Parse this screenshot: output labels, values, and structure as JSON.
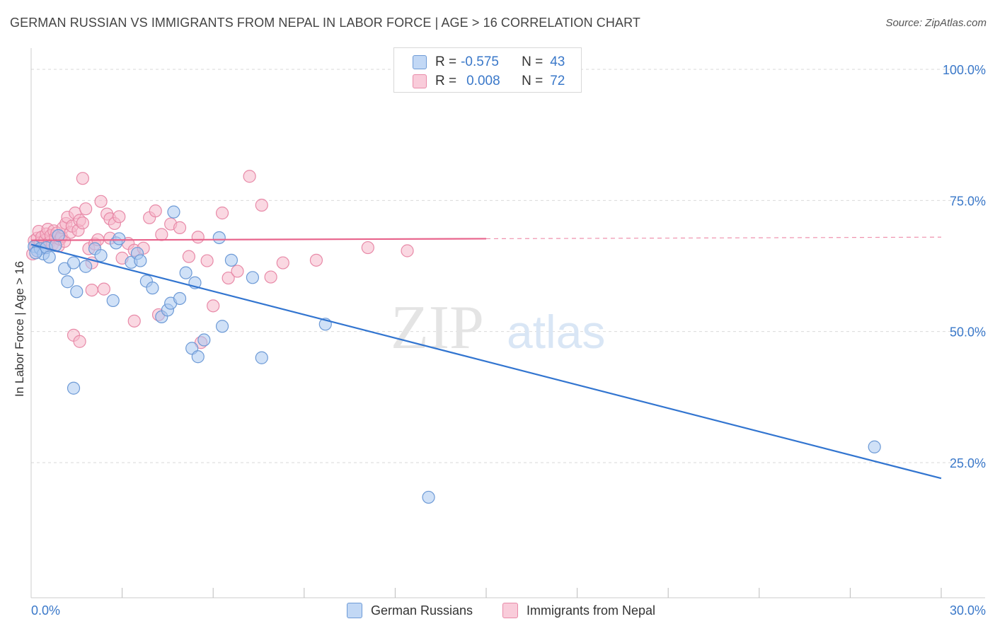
{
  "header": {
    "title": "GERMAN RUSSIAN VS IMMIGRANTS FROM NEPAL IN LABOR FORCE | AGE > 16 CORRELATION CHART",
    "source": "Source: ZipAtlas.com"
  },
  "legend": {
    "series1": {
      "r_label": "R =",
      "r_value": "-0.575",
      "n_label": "N =",
      "n_value": "43"
    },
    "series2": {
      "r_label": "R =",
      "r_value": "0.008",
      "n_label": "N =",
      "n_value": "72"
    }
  },
  "colors": {
    "blue_fill": "#a9c8f0",
    "blue_stroke": "#6d9ad6",
    "blue_line": "#3275d0",
    "pink_fill": "#f6b8cb",
    "pink_stroke": "#e88aa8",
    "pink_line": "#e8648c",
    "grid": "#d9d9d9",
    "axis_text": "#3a78c9"
  },
  "watermark": {
    "zip": "ZIP",
    "atlas": "atlas"
  },
  "chart_data": {
    "type": "scatter",
    "xlabel": "",
    "ylabel": "In Labor Force | Age > 16",
    "xlim": [
      0,
      30
    ],
    "ylim": [
      0,
      105
    ],
    "x_tick_labels": [
      "0.0%",
      "30.0%"
    ],
    "y_ticks": [
      25,
      50,
      75,
      100
    ],
    "y_tick_labels": [
      "25.0%",
      "50.0%",
      "75.0%",
      "100.0%"
    ],
    "series": [
      {
        "name": "German Russians",
        "points": [
          [
            0.1,
            66.2
          ],
          [
            0.2,
            65.4
          ],
          [
            0.3,
            65.8
          ],
          [
            0.4,
            64.8
          ],
          [
            0.5,
            66.0
          ],
          [
            0.6,
            64.2
          ],
          [
            0.8,
            66.4
          ],
          [
            0.9,
            68.3
          ],
          [
            1.1,
            62.0
          ],
          [
            1.2,
            59.5
          ],
          [
            1.4,
            63.1
          ],
          [
            1.5,
            57.6
          ],
          [
            1.8,
            62.4
          ],
          [
            2.1,
            65.8
          ],
          [
            2.3,
            64.5
          ],
          [
            2.7,
            55.9
          ],
          [
            2.8,
            66.9
          ],
          [
            2.9,
            67.7
          ],
          [
            3.3,
            63.2
          ],
          [
            3.5,
            64.9
          ],
          [
            3.6,
            63.5
          ],
          [
            3.8,
            59.6
          ],
          [
            4.0,
            58.3
          ],
          [
            4.3,
            52.8
          ],
          [
            4.5,
            54.1
          ],
          [
            4.6,
            55.4
          ],
          [
            4.7,
            72.8
          ],
          [
            4.9,
            56.3
          ],
          [
            5.1,
            61.2
          ],
          [
            5.3,
            46.8
          ],
          [
            5.4,
            59.3
          ],
          [
            5.5,
            45.2
          ],
          [
            5.7,
            48.4
          ],
          [
            6.2,
            67.9
          ],
          [
            6.3,
            51.0
          ],
          [
            6.6,
            63.6
          ],
          [
            7.3,
            60.3
          ],
          [
            7.6,
            45.0
          ],
          [
            1.4,
            39.2
          ],
          [
            9.7,
            51.4
          ],
          [
            27.8,
            28.0
          ],
          [
            13.1,
            18.4
          ],
          [
            0.15,
            65.0
          ]
        ]
      },
      {
        "name": "Immigrants from Nepal",
        "points": [
          [
            0.05,
            64.8
          ],
          [
            0.1,
            67.3
          ],
          [
            0.15,
            66.2
          ],
          [
            0.2,
            67.8
          ],
          [
            0.25,
            69.1
          ],
          [
            0.3,
            66.9
          ],
          [
            0.35,
            68.0
          ],
          [
            0.4,
            65.9
          ],
          [
            0.45,
            67.4
          ],
          [
            0.5,
            68.6
          ],
          [
            0.55,
            69.5
          ],
          [
            0.6,
            67.0
          ],
          [
            0.65,
            68.3
          ],
          [
            0.7,
            66.6
          ],
          [
            0.75,
            69.2
          ],
          [
            0.8,
            67.9
          ],
          [
            0.85,
            68.8
          ],
          [
            0.9,
            66.3
          ],
          [
            0.95,
            67.6
          ],
          [
            1.0,
            68.1
          ],
          [
            1.05,
            69.8
          ],
          [
            1.1,
            67.2
          ],
          [
            1.15,
            70.6
          ],
          [
            1.2,
            71.8
          ],
          [
            1.3,
            68.9
          ],
          [
            1.35,
            70.1
          ],
          [
            1.45,
            72.6
          ],
          [
            1.55,
            69.3
          ],
          [
            1.6,
            71.2
          ],
          [
            1.7,
            70.7
          ],
          [
            1.8,
            73.4
          ],
          [
            1.9,
            65.8
          ],
          [
            2.0,
            63.1
          ],
          [
            2.1,
            66.7
          ],
          [
            2.2,
            67.5
          ],
          [
            2.3,
            74.8
          ],
          [
            2.5,
            72.4
          ],
          [
            2.6,
            71.5
          ],
          [
            2.75,
            70.6
          ],
          [
            2.9,
            71.9
          ],
          [
            3.0,
            64.0
          ],
          [
            3.2,
            66.8
          ],
          [
            3.4,
            65.5
          ],
          [
            3.7,
            65.9
          ],
          [
            3.9,
            71.7
          ],
          [
            4.1,
            73.0
          ],
          [
            4.3,
            68.5
          ],
          [
            4.6,
            70.5
          ],
          [
            4.9,
            69.8
          ],
          [
            5.2,
            64.3
          ],
          [
            5.5,
            68.0
          ],
          [
            5.8,
            63.5
          ],
          [
            6.0,
            54.9
          ],
          [
            6.3,
            72.6
          ],
          [
            6.5,
            60.2
          ],
          [
            6.8,
            61.5
          ],
          [
            7.2,
            79.6
          ],
          [
            7.6,
            74.1
          ],
          [
            7.9,
            60.4
          ],
          [
            8.3,
            63.1
          ],
          [
            9.4,
            63.6
          ],
          [
            11.1,
            66.0
          ],
          [
            1.7,
            79.2
          ],
          [
            1.4,
            49.3
          ],
          [
            1.6,
            48.1
          ],
          [
            2.0,
            57.9
          ],
          [
            2.4,
            58.1
          ],
          [
            3.4,
            52.0
          ],
          [
            4.2,
            53.2
          ],
          [
            5.6,
            47.9
          ],
          [
            2.6,
            67.8
          ],
          [
            12.4,
            65.4
          ]
        ]
      }
    ],
    "trend_lines": [
      {
        "series": "German Russians",
        "x": [
          0,
          30
        ],
        "y": [
          66.6,
          22.0
        ]
      },
      {
        "series": "Immigrants from Nepal",
        "x": [
          0,
          15,
          30
        ],
        "y": [
          67.4,
          67.7,
          68.0
        ]
      }
    ]
  }
}
